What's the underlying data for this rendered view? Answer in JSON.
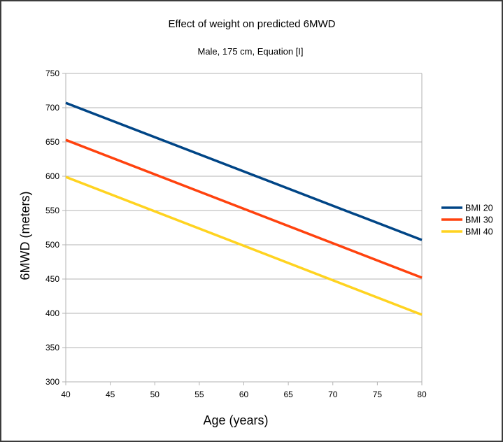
{
  "chart_data": {
    "type": "line",
    "title": "Effect of weight on predicted 6MWD",
    "subtitle": "Male, 175 cm, Equation [I]",
    "xlabel": "Age (years)",
    "ylabel": "6MWD (meters)",
    "x": [
      40,
      80
    ],
    "xlim": [
      40,
      80
    ],
    "ylim": [
      300,
      750
    ],
    "xticks": [
      40,
      45,
      50,
      55,
      60,
      65,
      70,
      75,
      80
    ],
    "yticks": [
      300,
      350,
      400,
      450,
      500,
      550,
      600,
      650,
      700,
      750
    ],
    "grid": true,
    "legend_position": "right",
    "series": [
      {
        "name": "BMI 20",
        "color": "#004586",
        "values": [
          707,
          507
        ]
      },
      {
        "name": "BMI 30",
        "color": "#ff420e",
        "values": [
          653,
          452
        ]
      },
      {
        "name": "BMI 40",
        "color": "#ffd320",
        "values": [
          599,
          398
        ]
      }
    ]
  }
}
